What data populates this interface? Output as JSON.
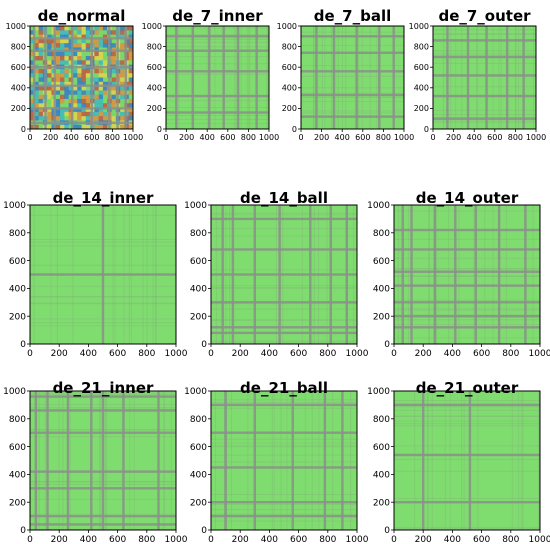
{
  "colors": {
    "field": "#7fdc6e",
    "stripe": "#8a8f8a",
    "frame": "#000000",
    "normal_palette": [
      "#2b6fd6",
      "#33b6c9",
      "#7ad66a",
      "#e9d44a",
      "#e8853a",
      "#c9453a"
    ]
  },
  "chart_data": [
    {
      "type": "heatmap",
      "title": "de_normal",
      "xticks": [
        "0",
        "200",
        "400",
        "600",
        "800",
        "1000"
      ],
      "yticks": [
        "0",
        "200",
        "400",
        "600",
        "800",
        "1000"
      ],
      "xlim": [
        0,
        1000
      ],
      "ylim": [
        0,
        1000
      ],
      "style": "colorful",
      "stripes_x": [
        40,
        150,
        240,
        410,
        600,
        770,
        850,
        930
      ],
      "stripes_y": [
        60,
        200,
        420,
        600,
        760,
        880
      ]
    },
    {
      "type": "heatmap",
      "title": "de_7_inner",
      "xticks": [
        "0",
        "200",
        "400",
        "600",
        "800",
        "1000"
      ],
      "yticks": [
        "0",
        "200",
        "400",
        "600",
        "800",
        "1000"
      ],
      "xlim": [
        0,
        1000
      ],
      "ylim": [
        0,
        1000
      ],
      "style": "plain",
      "stripes_x": [
        100,
        260,
        420,
        560,
        700,
        880
      ],
      "stripes_y": [
        160,
        320,
        560,
        760,
        900
      ]
    },
    {
      "type": "heatmap",
      "title": "de_7_ball",
      "xticks": [
        "0",
        "200",
        "400",
        "600",
        "800",
        "1000"
      ],
      "yticks": [
        "0",
        "200",
        "400",
        "600",
        "800",
        "1000"
      ],
      "xlim": [
        0,
        1000
      ],
      "ylim": [
        0,
        1000
      ],
      "style": "plain",
      "stripes_x": [
        150,
        320,
        540,
        760,
        900
      ],
      "stripes_y": [
        120,
        330,
        560,
        740,
        900
      ]
    },
    {
      "type": "heatmap",
      "title": "de_7_outer",
      "xticks": [
        "0",
        "200",
        "400",
        "600",
        "800",
        "1000"
      ],
      "yticks": [
        "0",
        "200",
        "400",
        "600",
        "800",
        "1000"
      ],
      "xlim": [
        0,
        1000
      ],
      "ylim": [
        0,
        1000
      ],
      "style": "plain",
      "stripes_x": [
        140,
        340,
        520,
        720,
        880
      ],
      "stripes_y": [
        100,
        320,
        520,
        700,
        860
      ]
    },
    {
      "type": "heatmap",
      "title": "de_14_inner",
      "xticks": [
        "0",
        "200",
        "400",
        "600",
        "800",
        "1000"
      ],
      "yticks": [
        "0",
        "200",
        "400",
        "600",
        "800",
        "1000"
      ],
      "xlim": [
        0,
        1000
      ],
      "ylim": [
        0,
        1000
      ],
      "style": "plain",
      "stripes_x": [
        500
      ],
      "stripes_y": [
        500
      ]
    },
    {
      "type": "heatmap",
      "title": "de_14_ball",
      "xticks": [
        "0",
        "200",
        "400",
        "600",
        "800",
        "1000"
      ],
      "yticks": [
        "0",
        "200",
        "400",
        "600",
        "800",
        "1000"
      ],
      "xlim": [
        0,
        1000
      ],
      "ylim": [
        0,
        1000
      ],
      "style": "plain",
      "stripes_x": [
        80,
        150,
        300,
        470,
        680,
        820,
        930
      ],
      "stripes_y": [
        80,
        120,
        300,
        500,
        680,
        900
      ]
    },
    {
      "type": "heatmap",
      "title": "de_14_outer",
      "xticks": [
        "0",
        "200",
        "400",
        "600",
        "800",
        "1000"
      ],
      "yticks": [
        "0",
        "200",
        "400",
        "600",
        "800",
        "1000"
      ],
      "xlim": [
        0,
        1000
      ],
      "ylim": [
        0,
        1000
      ],
      "style": "plain",
      "stripes_x": [
        60,
        120,
        280,
        420,
        560,
        720,
        900
      ],
      "stripes_y": [
        120,
        200,
        300,
        420,
        520,
        680,
        820
      ]
    },
    {
      "type": "heatmap",
      "title": "de_21_inner",
      "xticks": [
        "0",
        "200",
        "400",
        "600",
        "800",
        "1000"
      ],
      "yticks": [
        "0",
        "200",
        "400",
        "600",
        "800",
        "1000"
      ],
      "xlim": [
        0,
        1000
      ],
      "ylim": [
        0,
        1000
      ],
      "style": "plain",
      "stripes_x": [
        40,
        120,
        260,
        420,
        500,
        640,
        880
      ],
      "stripes_y": [
        40,
        100,
        300,
        420,
        700,
        860,
        960
      ]
    },
    {
      "type": "heatmap",
      "title": "de_21_ball",
      "xticks": [
        "0",
        "200",
        "400",
        "600",
        "800",
        "1000"
      ],
      "yticks": [
        "0",
        "200",
        "400",
        "600",
        "800",
        "1000"
      ],
      "xlim": [
        0,
        1000
      ],
      "ylim": [
        0,
        1000
      ],
      "style": "plain",
      "stripes_x": [
        100,
        300,
        560,
        780,
        900
      ],
      "stripes_y": [
        100,
        200,
        450,
        700,
        900
      ]
    },
    {
      "type": "heatmap",
      "title": "de_21_outer",
      "xticks": [
        "0",
        "200",
        "400",
        "600",
        "800",
        "1000"
      ],
      "yticks": [
        "0",
        "200",
        "400",
        "600",
        "800",
        "1000"
      ],
      "xlim": [
        0,
        1000
      ],
      "ylim": [
        0,
        1000
      ],
      "style": "plain",
      "stripes_x": [
        200,
        520
      ],
      "stripes_y": [
        200,
        540,
        900
      ]
    }
  ]
}
